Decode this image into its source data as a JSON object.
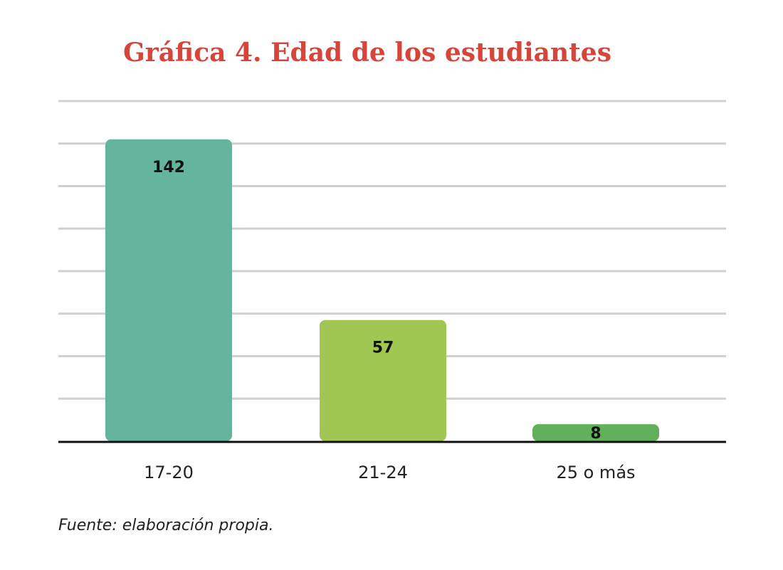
{
  "chart_data": {
    "type": "bar",
    "title": "Gráfica 4. Edad de los estudiantes",
    "categories": [
      "17-20",
      "21-24",
      "25 o más"
    ],
    "values": [
      142,
      57,
      8
    ],
    "data_labels": [
      "142",
      "57",
      "8"
    ],
    "colors": [
      "#63b59d",
      "#a1c651",
      "#60b15a"
    ],
    "ylim": [
      0,
      160
    ],
    "y_gridlines": [
      0,
      20,
      40,
      60,
      80,
      100,
      120,
      140,
      160
    ],
    "grid": true,
    "legend": "none",
    "xlabel": "",
    "ylabel": ""
  },
  "source_note": "Fuente: elaboración propia."
}
